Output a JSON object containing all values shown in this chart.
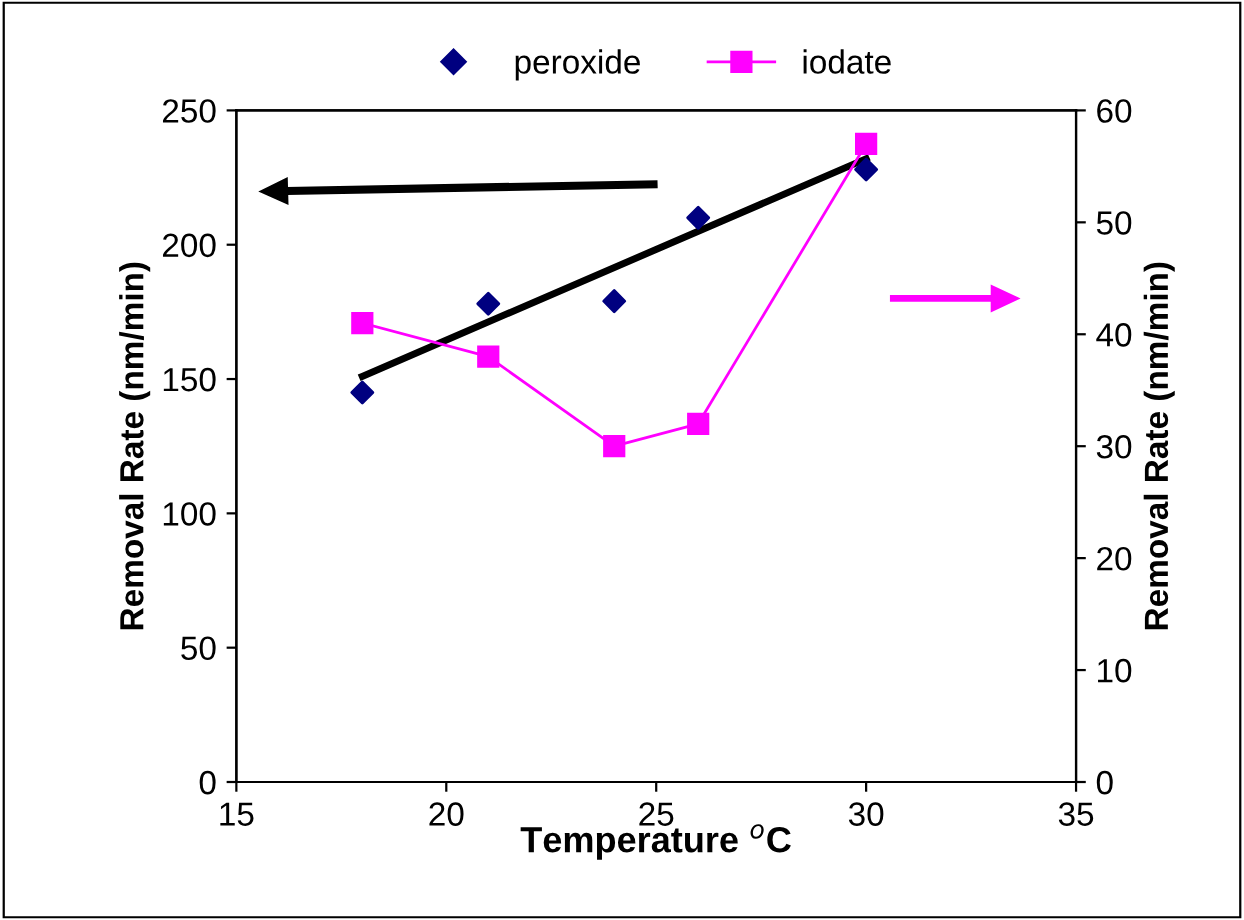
{
  "chart_data": {
    "type": "scatter",
    "xlabel": "Temperature $^{o}$C",
    "ylabel": "Removal Rate (nm/min)",
    "y2label": "Removal Rate (nm/min)",
    "xlim": [
      15,
      35
    ],
    "xticks": [
      15,
      20,
      25,
      30,
      35
    ],
    "ylim": [
      0,
      250
    ],
    "yticks": [
      0,
      50,
      100,
      150,
      200,
      250
    ],
    "y2lim": [
      0,
      60
    ],
    "y2ticks": [
      0,
      10,
      20,
      30,
      40,
      50,
      60
    ],
    "legend": "top",
    "grid": false,
    "series": [
      {
        "name": "peroxide",
        "marker": "diamond",
        "color": "#000080",
        "x": [
          18,
          21,
          24,
          26,
          30
        ],
        "values": [
          145,
          178,
          179,
          210,
          228
        ]
      },
      {
        "name": "iodate",
        "type": "line",
        "marker": "square",
        "axis": "y2",
        "color": "#ff00ff",
        "x": [
          18,
          21,
          24,
          26,
          30
        ],
        "values": [
          41,
          38,
          30,
          32,
          57
        ]
      },
      {
        "type": "line",
        "marker": "none",
        "color": "#000000",
        "x": [
          18,
          30
        ],
        "values": [
          151,
          232
        ]
      }
    ]
  }
}
